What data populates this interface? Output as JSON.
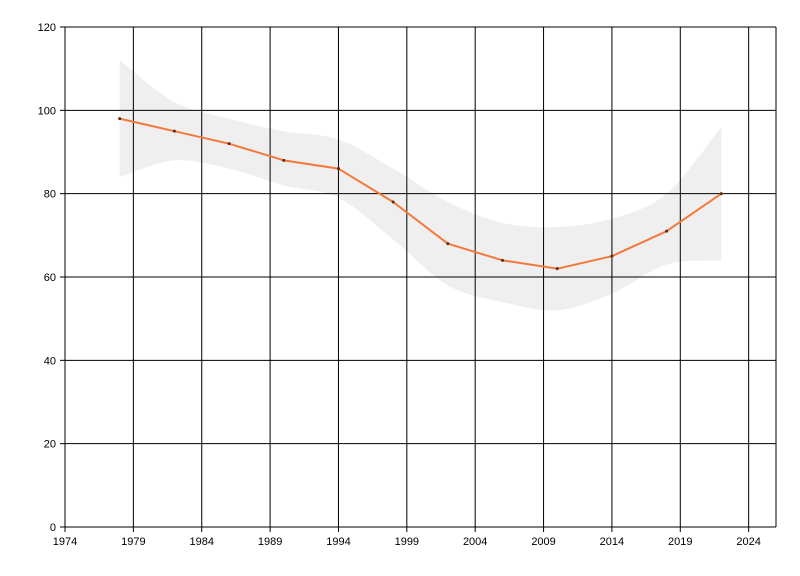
{
  "chart_data": {
    "type": "line",
    "title": "",
    "xlabel": "",
    "ylabel": "",
    "xlim": [
      1974,
      2026
    ],
    "ylim": [
      0,
      120
    ],
    "x_ticks": [
      "1974",
      "1979",
      "1984",
      "1989",
      "1994",
      "1999",
      "2004",
      "2009",
      "2014",
      "2019",
      "2024"
    ],
    "y_ticks": [
      "0",
      "20",
      "40",
      "60",
      "80",
      "100",
      "120"
    ],
    "grid": true,
    "series": [
      {
        "x": [
          1978,
          1982,
          1986,
          1990,
          1994,
          1998,
          2002,
          2006,
          2010,
          2014,
          2018,
          2022
        ],
        "values": [
          98,
          95,
          92,
          88,
          86,
          78,
          68,
          64,
          62,
          65,
          71,
          80
        ]
      }
    ],
    "band": {
      "x": [
        1978,
        1982,
        1986,
        1990,
        1994,
        1998,
        2002,
        2006,
        2010,
        2014,
        2018,
        2022
      ],
      "upper": [
        112,
        102,
        98,
        95,
        93,
        86,
        78,
        73,
        72,
        74,
        80,
        96
      ],
      "lower": [
        84,
        88,
        86,
        82,
        79,
        69,
        58,
        54,
        52,
        56,
        63,
        64
      ]
    },
    "colors": {
      "line": "#f4773b",
      "marker": "#5a2a10",
      "band": "#efefef",
      "grid": "#000000"
    }
  }
}
